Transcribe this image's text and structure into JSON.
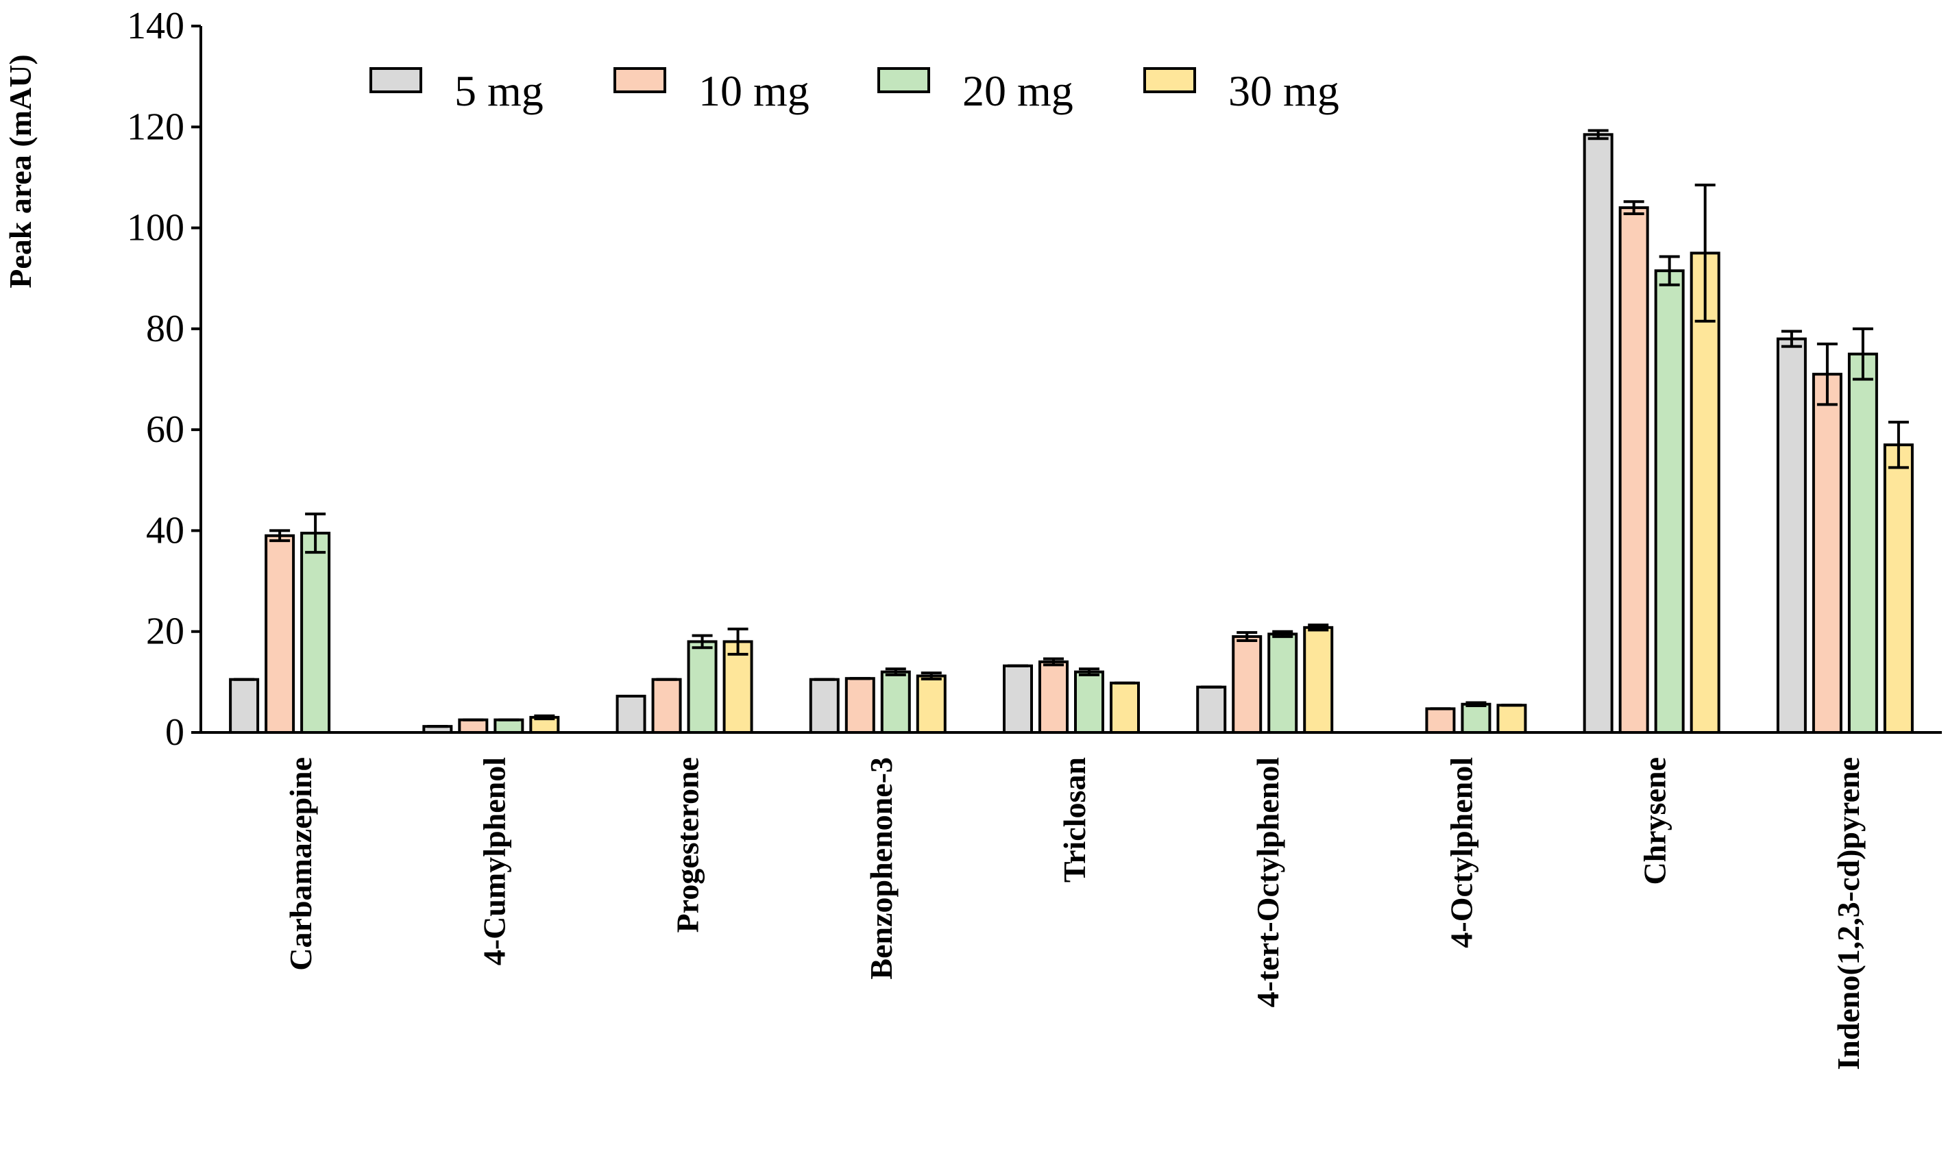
{
  "chart_data": {
    "type": "bar",
    "title": "",
    "xlabel": "",
    "ylabel": "Peak area (mAU)",
    "ylim": [
      0,
      140
    ],
    "yticks": [
      0,
      20,
      40,
      60,
      80,
      100,
      120,
      140
    ],
    "categories": [
      "Carbamazepine",
      "4-Cumylphenol",
      "Progesterone",
      "Benzophenone-3",
      "Triclosan",
      "4-tert-Octylphenol",
      "4-Octylphenol",
      "Chrysene",
      "Indeno(1,2,3-cd)pyrene"
    ],
    "legend_position": "top",
    "series": [
      {
        "name": "5 mg",
        "color": "#d9d9d9",
        "values": [
          10.5,
          1.2,
          7.2,
          10.5,
          13.2,
          9.0,
          null,
          118.5,
          78.0
        ],
        "errors": [
          0,
          0,
          0,
          0,
          0,
          0,
          null,
          0.8,
          1.5
        ]
      },
      {
        "name": "10 mg",
        "color": "#fbcfb7",
        "values": [
          39.0,
          2.5,
          10.5,
          10.7,
          14.0,
          19.0,
          4.7,
          104.0,
          71.0
        ],
        "errors": [
          1.0,
          0,
          0,
          0,
          0.6,
          0.8,
          0,
          1.2,
          6.0
        ]
      },
      {
        "name": "20 mg",
        "color": "#c3e5bd",
        "values": [
          39.5,
          2.5,
          18.0,
          12.0,
          12.0,
          19.5,
          5.6,
          91.5,
          75.0
        ],
        "errors": [
          3.8,
          0,
          1.2,
          0.6,
          0.6,
          0.5,
          0.3,
          2.8,
          5.0
        ]
      },
      {
        "name": "30 mg",
        "color": "#fee69a",
        "values": [
          null,
          3.0,
          18.0,
          11.2,
          9.8,
          20.8,
          5.4,
          95.0,
          57.0
        ],
        "errors": [
          null,
          0.3,
          2.5,
          0.6,
          0,
          0.5,
          0,
          13.5,
          4.5
        ]
      }
    ]
  }
}
